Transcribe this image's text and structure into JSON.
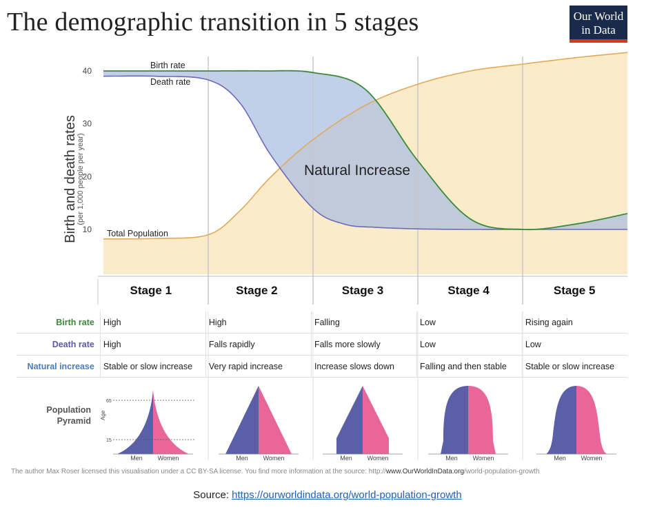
{
  "title": "The demographic transition in 5 stages",
  "logo": {
    "line1": "Our World",
    "line2": "in Data"
  },
  "colors": {
    "birth": "#3a8a3a",
    "death": "#6a6ab8",
    "natural_fill": "#aebfe0",
    "population_fill": "#faebc9",
    "population_line": "#e0a95c",
    "men": "#5b5fa8",
    "women": "#e9669a"
  },
  "chart_data": {
    "type": "line",
    "title": "The demographic transition in 5 stages",
    "ylabel": "Birth and death rates",
    "ylabel_sub": "(per 1,000 people per year)",
    "yticks": [
      10,
      20,
      30,
      40
    ],
    "ylim": [
      5,
      42
    ],
    "annotation": "Natural Increase",
    "series": [
      {
        "name": "Birth rate",
        "x": [
          0,
          0.5,
          1.0,
          1.5,
          2.0,
          2.5,
          3.0,
          3.5,
          4.0,
          4.5,
          5.0
        ],
        "values": [
          40,
          40,
          40,
          40,
          39.7,
          36.5,
          23,
          12,
          10,
          11,
          13
        ]
      },
      {
        "name": "Death rate",
        "x": [
          0,
          0.5,
          1.0,
          1.3,
          1.6,
          2.0,
          2.3,
          2.6,
          3.0,
          3.5,
          4.0,
          4.5,
          5.0
        ],
        "values": [
          39,
          39,
          38.3,
          34,
          24,
          14,
          11,
          10.4,
          10.1,
          10,
          10,
          10,
          10
        ]
      },
      {
        "name": "Total Population",
        "x": [
          0,
          0.5,
          1.0,
          1.3,
          1.6,
          2.0,
          2.5,
          3.0,
          3.5,
          4.0,
          4.5,
          5.0
        ],
        "values": [
          8.2,
          8.3,
          9,
          13.5,
          20,
          27,
          33.5,
          37.5,
          40,
          41.3,
          42.5,
          43.5
        ]
      }
    ]
  },
  "stages": [
    "Stage 1",
    "Stage 2",
    "Stage 3",
    "Stage 4",
    "Stage 5"
  ],
  "rows": [
    {
      "label": "Birth rate",
      "cls": "birth",
      "cells": [
        "High",
        "High",
        "Falling",
        "Low",
        "Rising again"
      ]
    },
    {
      "label": "Death rate",
      "cls": "death",
      "cells": [
        "High",
        "Falls rapidly",
        "Falls more slowly",
        "Low",
        "Low"
      ]
    },
    {
      "label": "Natural increase",
      "cls": "natural",
      "cells": [
        "Stable or slow increase",
        "Very rapid increase",
        "Increase slows down",
        "Falling and then stable",
        "Stable or slow increase"
      ]
    }
  ],
  "pyramid": {
    "label_line1": "Population",
    "label_line2": "Pyramid",
    "age_label": "Age",
    "age_ticks": [
      "65",
      "15"
    ],
    "men": "Men",
    "women": "Women",
    "shapes": [
      "concave",
      "triangle",
      "trapezoid",
      "dome",
      "narrowdome"
    ]
  },
  "license": {
    "text": "The author Max Roser licensed this visualisation under a CC BY-SA license. You find more information at the source: http://",
    "bold": "www.OurWorldInData.org",
    "tail": "/world-population-growth"
  },
  "source": {
    "prefix": "Source: ",
    "link": "https://ourworldindata.org/world-population-growth"
  }
}
